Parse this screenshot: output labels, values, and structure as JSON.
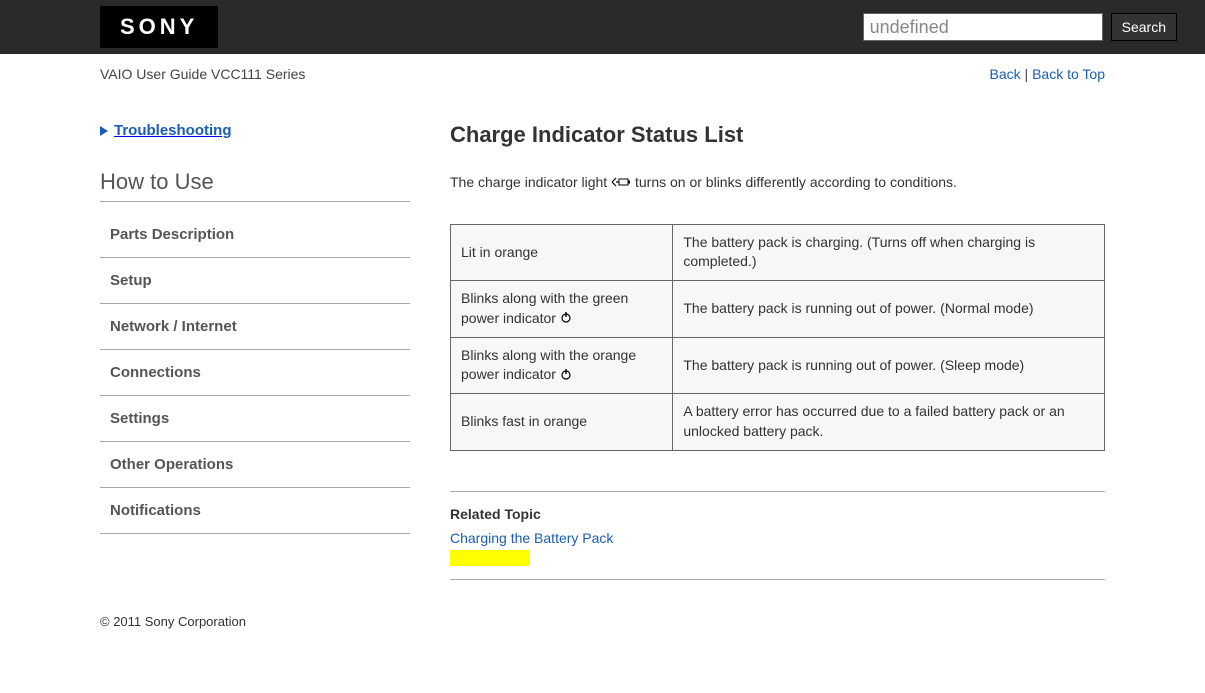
{
  "header": {
    "logo": "SONY",
    "search_placeholder": "undefined",
    "search_button": "Search"
  },
  "breadcrumb": {
    "guide": "VAIO User Guide VCC111 Series",
    "back": "Back",
    "back_to_top": "Back to Top",
    "sep": " | "
  },
  "sidebar": {
    "troubleshooting": "Troubleshooting",
    "howto": "How to Use",
    "items": [
      "Parts Description",
      "Setup",
      "Network / Internet",
      "Connections",
      "Settings",
      "Other Operations",
      "Notifications"
    ]
  },
  "main": {
    "title": "Charge Indicator Status List",
    "intro_before": "The charge indicator light ",
    "intro_after": " turns on or blinks differently according to conditions.",
    "rows": [
      {
        "status_before": "Lit in orange",
        "status_after": "",
        "has_icon": false,
        "desc": "The battery pack is charging. (Turns off when charging is completed.)"
      },
      {
        "status_before": "Blinks along with the green power indicator ",
        "status_after": "",
        "has_icon": true,
        "desc": "The battery pack is running out of power. (Normal mode)"
      },
      {
        "status_before": "Blinks along with the orange power indicator ",
        "status_after": "",
        "has_icon": true,
        "desc": "The battery pack is running out of power. (Sleep mode)"
      },
      {
        "status_before": "Blinks fast in orange",
        "status_after": "",
        "has_icon": false,
        "desc": "A battery error has occurred due to a failed battery pack or an unlocked battery pack."
      }
    ],
    "related_heading": "Related Topic",
    "related_link": "Charging the Battery Pack"
  },
  "footer": "© 2011 Sony Corporation",
  "colors": {
    "link": "#1a5db4",
    "topbar": "#2a2a2a",
    "highlight": "#ffff00",
    "table_bg": "#f7f7f7",
    "border": "#666666"
  }
}
